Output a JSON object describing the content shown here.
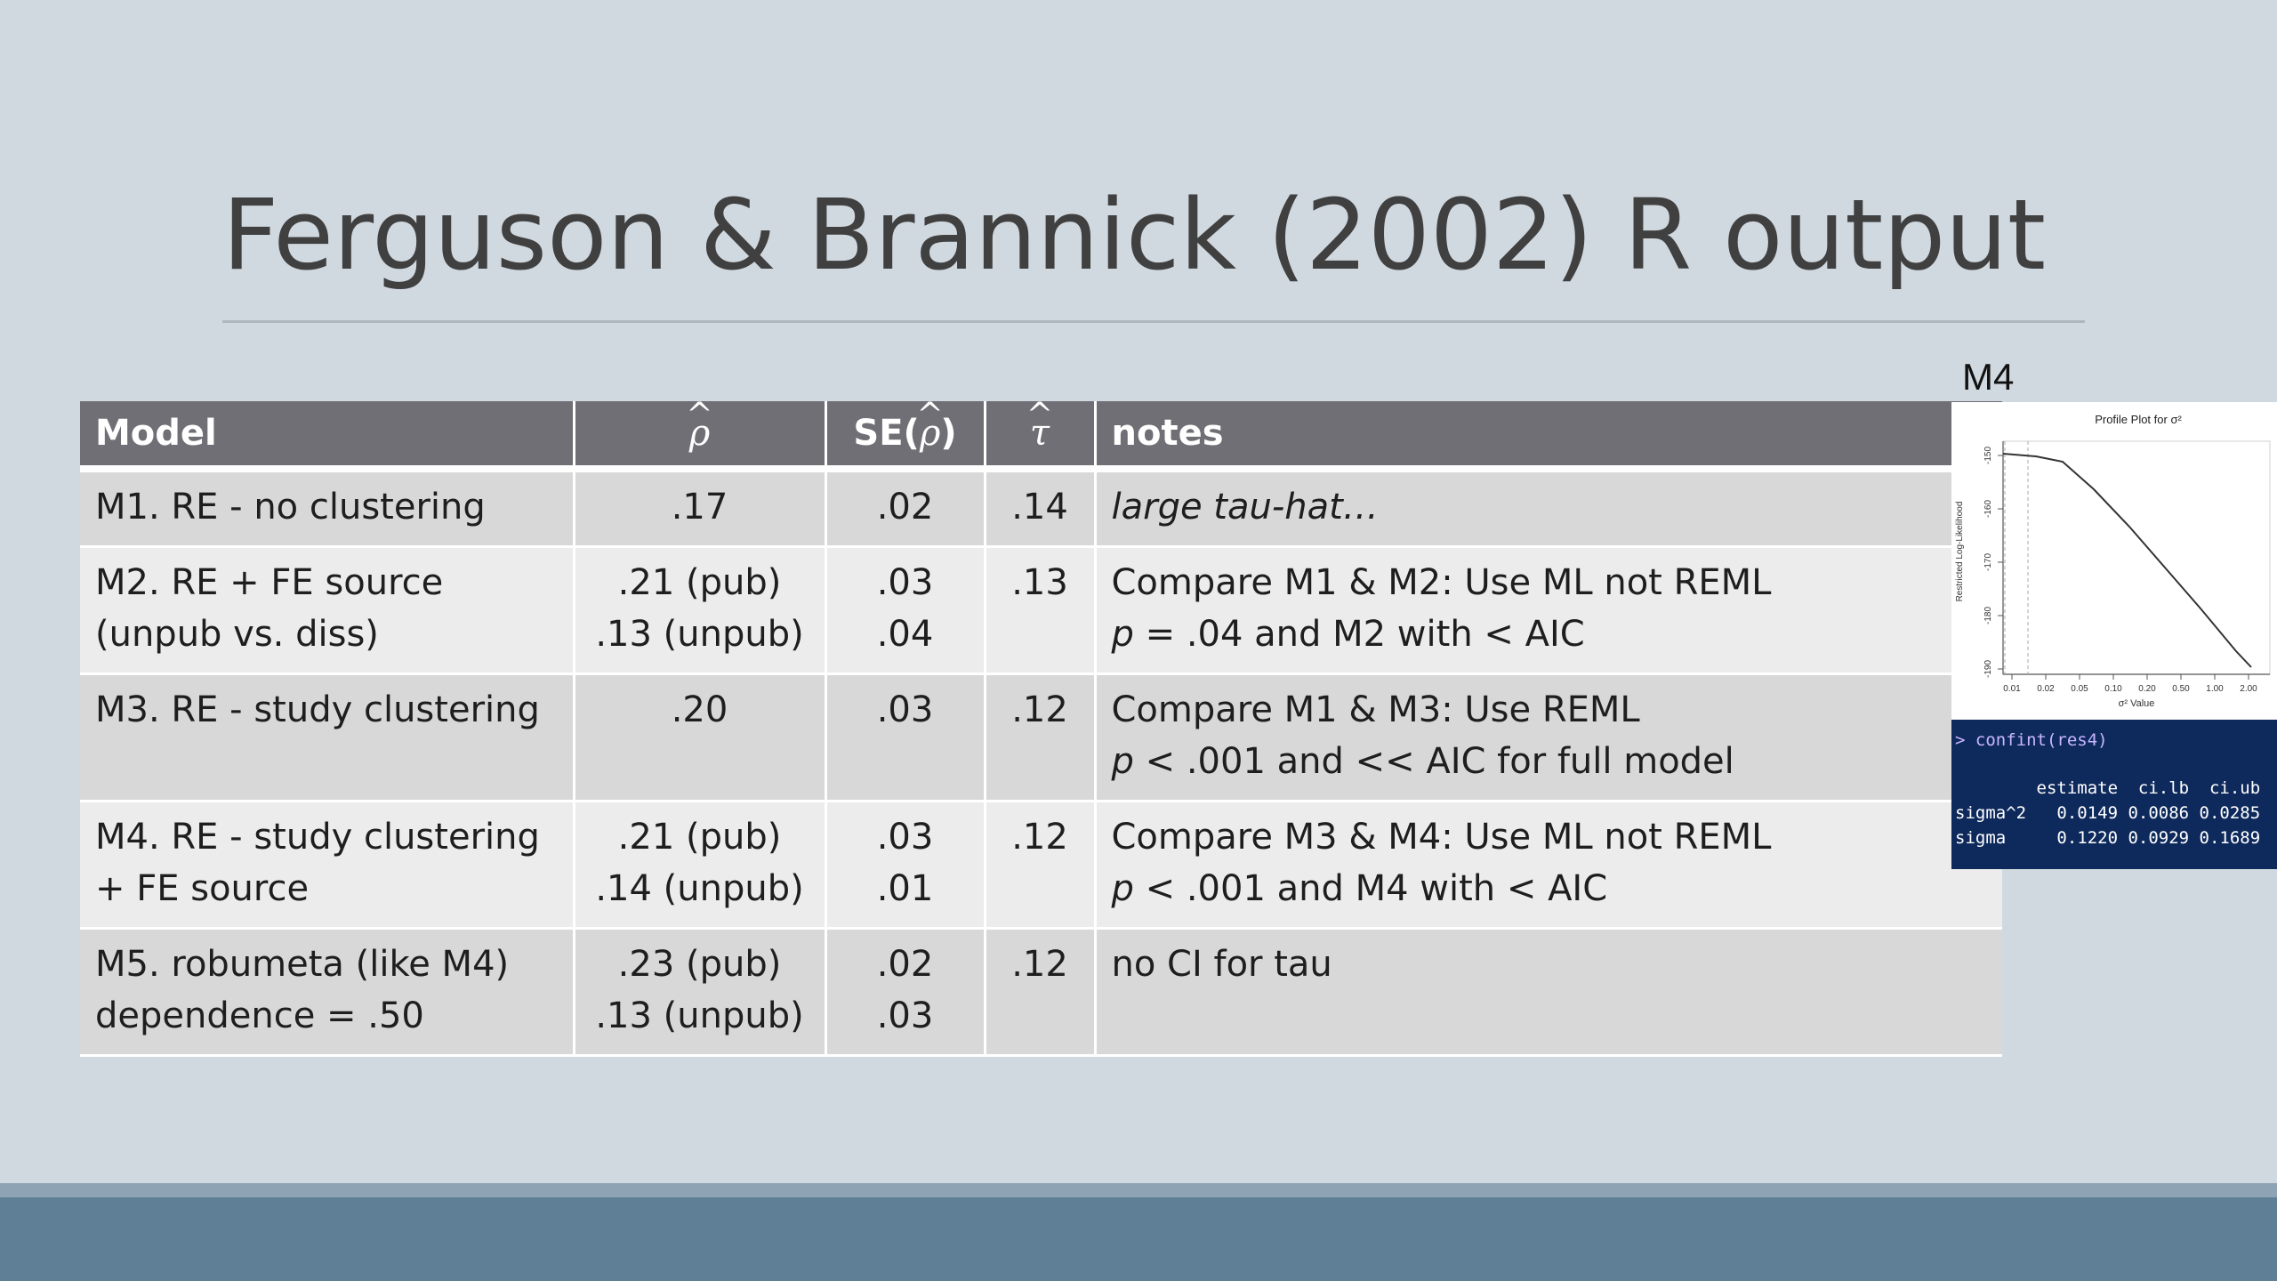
{
  "slide": {
    "title": "Ferguson & Brannick (2002) R output"
  },
  "table": {
    "headers": {
      "model": "Model",
      "rho": "ρ",
      "se_prefix": "SE(",
      "se_symbol": "ρ",
      "se_suffix": ")",
      "tau": "τ",
      "notes": "notes"
    },
    "rows": [
      {
        "model": [
          "M1. RE - no clustering"
        ],
        "rho": [
          ".17"
        ],
        "se": [
          ".02"
        ],
        "tau": ".14",
        "notes": [
          "large tau-hat…"
        ]
      },
      {
        "model": [
          "M2. RE + FE source",
          "(unpub vs. diss)"
        ],
        "rho": [
          ".21 (pub)",
          ".13 (unpub)"
        ],
        "se": [
          ".03",
          ".04"
        ],
        "tau": ".13",
        "notes": [
          "Compare M1 & M2: Use ML not REML",
          "p",
          " = .04 and M2 with < AIC"
        ]
      },
      {
        "model": [
          "M3. RE - study clustering"
        ],
        "rho": [
          ".20"
        ],
        "se": [
          ".03"
        ],
        "tau": ".12",
        "notes": [
          "Compare M1 & M3: Use REML",
          "p",
          " < .001 and << AIC for full model"
        ]
      },
      {
        "model": [
          "M4. RE - study clustering",
          "+  FE source"
        ],
        "rho": [
          ".21 (pub)",
          ".14 (unpub)"
        ],
        "se": [
          ".03",
          ".01"
        ],
        "tau": ".12",
        "notes": [
          "Compare M3 & M4: Use ML not REML",
          "p",
          " < .001 and M4 with < AIC"
        ]
      },
      {
        "model": [
          "M5. robumeta (like M4)",
          "dependence = .50"
        ],
        "rho": [
          ".23 (pub)",
          ".13 (unpub)"
        ],
        "se": [
          ".02",
          ".03"
        ],
        "tau": ".12",
        "notes": [
          "no CI for tau"
        ]
      }
    ]
  },
  "inset": {
    "label": "M4",
    "plot": {
      "title": "Profile Plot for σ²",
      "ylabel": "Restricted Log-Likelihood",
      "xlabel": "σ² Value",
      "y_ticks": [
        "-150",
        "-160",
        "-170",
        "-180",
        "-190"
      ],
      "x_ticks": [
        "0.01",
        "0.02",
        "0.05",
        "0.10",
        "0.20",
        "0.50",
        "1.00",
        "2.00"
      ]
    },
    "console": {
      "command": "> confint(res4)",
      "header": "        estimate  ci.lb  ci.ub",
      "rows": [
        "sigma^2   0.0149 0.0086 0.0285",
        "sigma     0.1220 0.0929 0.1689"
      ]
    }
  }
}
